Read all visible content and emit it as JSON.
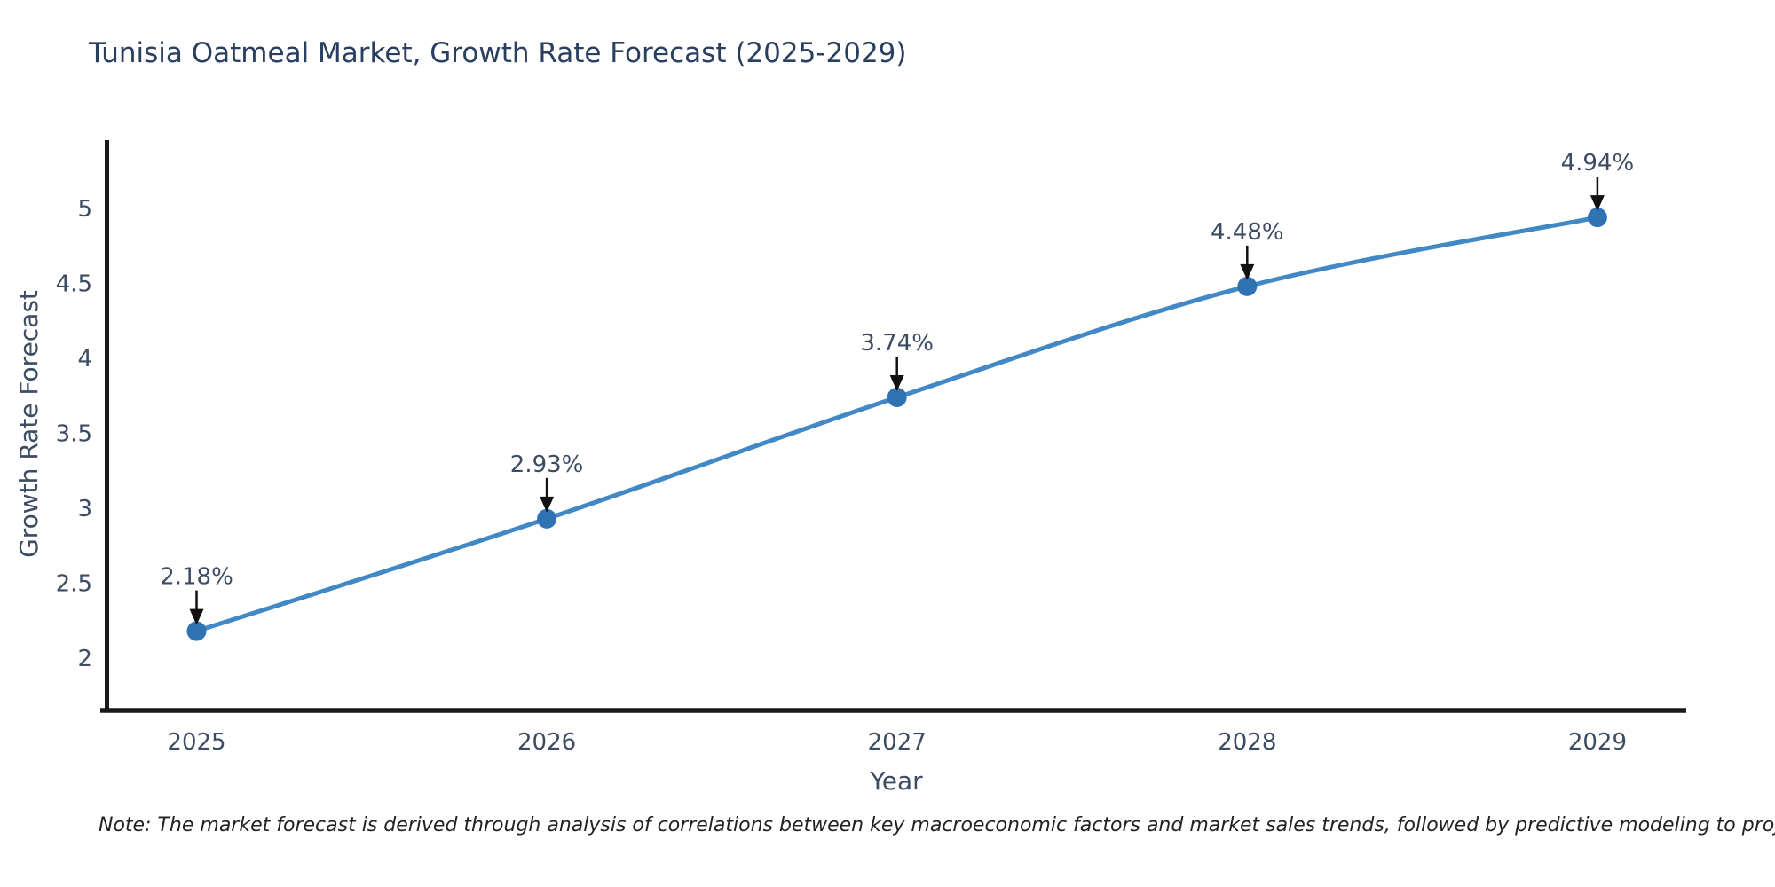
{
  "note": "Note: The market forecast is derived through analysis of correlations between key macroeconomic factors and market sales trends, followed by predictive modeling to project future sales",
  "chart_data": {
    "type": "line",
    "title": "Tunisia Oatmeal Market, Growth Rate Forecast (2025-2029)",
    "xlabel": "Year",
    "ylabel": "Growth Rate Forecast",
    "x": [
      "2025",
      "2026",
      "2027",
      "2028",
      "2029"
    ],
    "series": [
      {
        "name": "Growth Rate Forecast",
        "values": [
          2.18,
          2.93,
          3.74,
          4.48,
          4.94
        ],
        "point_labels": [
          "2.18%",
          "2.93%",
          "3.74%",
          "4.48%",
          "4.94%"
        ]
      }
    ],
    "yticks": [
      2,
      2.5,
      3,
      3.5,
      4,
      4.5,
      5
    ],
    "ylim": [
      1.62,
      5.47
    ],
    "grid": false,
    "legend_position": "none",
    "line_shape": "spline",
    "annotations_have_arrows": true,
    "colors": {
      "line": "#4288c5",
      "marker": "#2f73b4",
      "arrow": "#111111",
      "title_text": "#2a3f5f",
      "axis_text": "#3d4c63",
      "spine": "#1a1a1a",
      "background": "#ffffff"
    }
  }
}
